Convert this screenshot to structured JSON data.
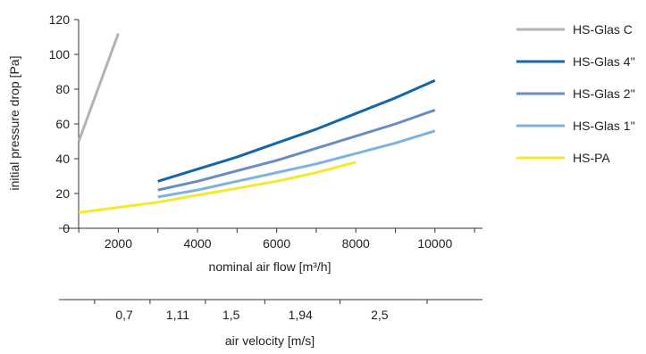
{
  "chart_data": {
    "type": "line",
    "ylabel": "initial pressure drop [Pa]",
    "xlabel": "nominal air flow [m³/h]",
    "x2label": "air velocity [m/s]",
    "xlim": [
      500,
      11200
    ],
    "ylim": [
      0,
      120
    ],
    "y_ticks": [
      0,
      20,
      40,
      60,
      80,
      100,
      120
    ],
    "x_ticks": [
      {
        "value": 2000,
        "label": "2000"
      },
      {
        "value": 4000,
        "label": "4000"
      },
      {
        "value": 6000,
        "label": "6000"
      },
      {
        "value": 8000,
        "label": "8000"
      },
      {
        "value": 10000,
        "label": "10000"
      }
    ],
    "x_minor_ticks": [
      1000,
      3000,
      5000,
      7000,
      9000,
      11000
    ],
    "x2_ticks": [
      {
        "value": 2150,
        "label": "0,7"
      },
      {
        "value": 3500,
        "label": "1,11"
      },
      {
        "value": 4850,
        "label": "1,5"
      },
      {
        "value": 6600,
        "label": "1,94"
      },
      {
        "value": 8600,
        "label": "2,5"
      }
    ],
    "x2_minor_ticks": [
      1400,
      2800,
      4200,
      5700,
      7600,
      9800
    ],
    "grid": false,
    "legend_position": "right",
    "series": [
      {
        "name": "HS-Glas C",
        "color": "#b3b3b3",
        "x": [
          1000,
          2000
        ],
        "y": [
          50,
          112
        ]
      },
      {
        "name": "HS-Glas 4''",
        "color": "#1366a8",
        "x": [
          3000,
          4000,
          5000,
          6000,
          7000,
          8000,
          9000,
          10000
        ],
        "y": [
          27,
          34,
          41,
          49,
          57,
          66,
          75,
          85
        ]
      },
      {
        "name": "HS-Glas 2''",
        "color": "#6a8cc4",
        "x": [
          3000,
          4000,
          5000,
          6000,
          7000,
          8000,
          9000,
          10000
        ],
        "y": [
          22,
          27,
          33,
          39,
          46,
          53,
          60,
          68
        ]
      },
      {
        "name": "HS-Glas 1''",
        "color": "#7eb3e0",
        "x": [
          3000,
          4000,
          5000,
          6000,
          7000,
          8000,
          9000,
          10000
        ],
        "y": [
          18,
          22,
          27,
          32,
          37,
          43,
          49,
          56
        ]
      },
      {
        "name": "HS-PA",
        "color": "#f3ea2c",
        "x": [
          1000,
          2000,
          3000,
          4000,
          5000,
          6000,
          7000,
          8000
        ],
        "y": [
          9,
          12,
          15,
          19,
          23,
          27,
          32,
          38
        ]
      }
    ]
  }
}
